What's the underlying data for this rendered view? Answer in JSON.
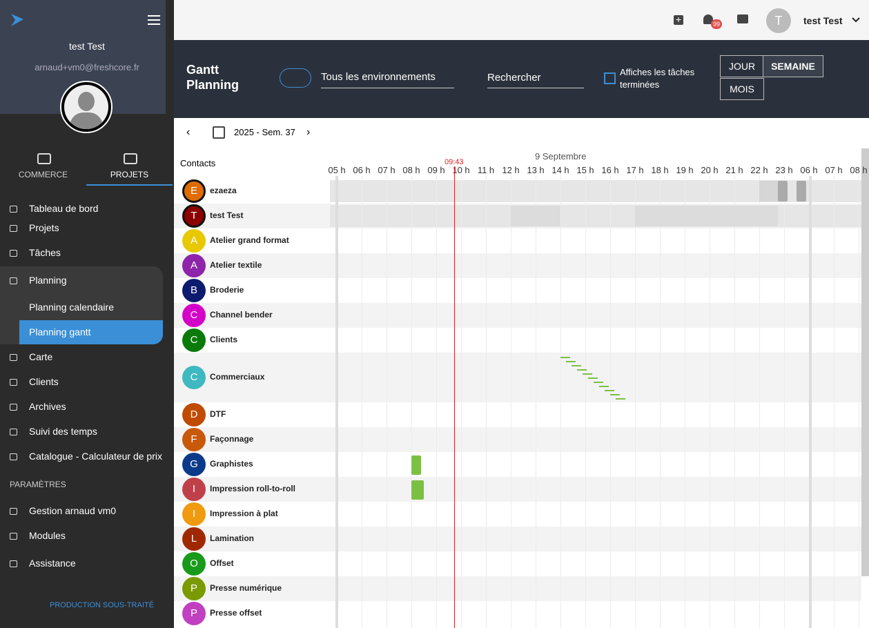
{
  "sidebar": {
    "user_name": "test Test",
    "email": "arnaud+vm0@freshcore.fr",
    "tabs": [
      "COMMERCE",
      "PROJETS"
    ],
    "menu": [
      "Tableau de bord",
      "Projets",
      "Tâches",
      "Planning"
    ],
    "submenu": [
      "Planning calendaire",
      "Planning gantt"
    ],
    "menu2": [
      "Carte",
      "Clients",
      "Archives",
      "Suivi des temps",
      "Catalogue - Calculateur de prix"
    ],
    "section": "PARAMÈTRES",
    "settings": [
      "Gestion arnaud vm0",
      "Modules",
      "Assistance"
    ],
    "footer": "PRODUCTION SOUS-TRAITÉ"
  },
  "topbar": {
    "badge": "99",
    "avatar": "T",
    "user": "test Test"
  },
  "header": {
    "title": "Gantt Planning",
    "environment": "Tous les environnements",
    "search": "Rechercher",
    "checkbox": "Affiches les tâches terminées",
    "views": [
      "JOUR",
      "SEMAINE",
      "MOIS"
    ]
  },
  "nav": {
    "week": "2025 - Sem. 37"
  },
  "gantt": {
    "contacts_label": "Contacts",
    "date": "9 Septembre",
    "now": "09:43",
    "hours": [
      "05 h",
      "06 h",
      "07 h",
      "08 h",
      "09 h",
      "10 h",
      "11 h",
      "12 h",
      "13 h",
      "14 h",
      "15 h",
      "16 h",
      "17 h",
      "18 h",
      "19 h",
      "20 h",
      "21 h",
      "22 h",
      "23 h",
      "06 h",
      "07 h",
      "08 h"
    ],
    "rows": [
      {
        "initial": "E",
        "name": "ezaeza",
        "color": "#e06c00"
      },
      {
        "initial": "T",
        "name": "test Test",
        "color": "#8b0000"
      },
      {
        "initial": "A",
        "name": "Atelier grand format",
        "color": "#e8c800"
      },
      {
        "initial": "A",
        "name": "Atelier textile",
        "color": "#8e24aa"
      },
      {
        "initial": "B",
        "name": "Broderie",
        "color": "#0d1b6e"
      },
      {
        "initial": "C",
        "name": "Channel bender",
        "color": "#d400c8"
      },
      {
        "initial": "C",
        "name": "Clients",
        "color": "#0a7a0a"
      },
      {
        "initial": "C",
        "name": "Commerciaux",
        "color": "#3fb8c0"
      },
      {
        "initial": "D",
        "name": "DTF",
        "color": "#c04a00"
      },
      {
        "initial": "F",
        "name": "Façonnage",
        "color": "#c8580a"
      },
      {
        "initial": "G",
        "name": "Graphistes",
        "color": "#0b3a8a"
      },
      {
        "initial": "I",
        "name": "Impression roll-to-roll",
        "color": "#c0404a"
      },
      {
        "initial": "I",
        "name": "Impression à plat",
        "color": "#f09a10"
      },
      {
        "initial": "L",
        "name": "Lamination",
        "color": "#a02800"
      },
      {
        "initial": "O",
        "name": "Offset",
        "color": "#1a9a1a"
      },
      {
        "initial": "P",
        "name": "Presse numérique",
        "color": "#7a9a00"
      },
      {
        "initial": "P",
        "name": "Presse offset",
        "color": "#c040c0"
      }
    ]
  }
}
